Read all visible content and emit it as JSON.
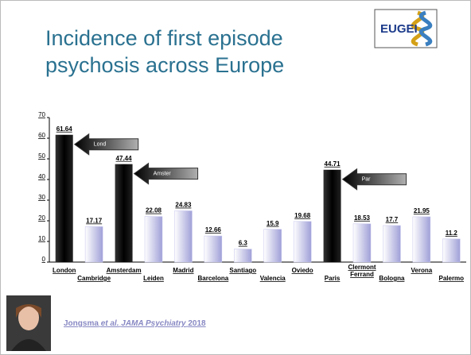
{
  "header": {
    "title_line1": "Incidence of first episode",
    "title_line2": "psychosis across Europe",
    "logo": "EUGEI"
  },
  "chart_data": {
    "type": "bar",
    "categories": [
      "London",
      "Cambridge",
      "Amsterdam",
      "Leiden",
      "Madrid",
      "Barcelona",
      "Santiago",
      "Valencia",
      "Oviedo",
      "Paris",
      "Clermont Ferrand",
      "Bologna",
      "Verona",
      "Palermo"
    ],
    "values": [
      61.64,
      17.17,
      47.44,
      22.08,
      24.83,
      12.66,
      6.3,
      15.9,
      19.68,
      44.71,
      18.53,
      17.7,
      21.95,
      11.2
    ],
    "colors": [
      "#000000",
      "#c4c4ee",
      "#000000",
      "#c4c4ee",
      "#c4c4ee",
      "#c4c4ee",
      "#c4c4ee",
      "#c4c4ee",
      "#c4c4ee",
      "#000000",
      "#c4c4ee",
      "#c4c4ee",
      "#c4c4ee",
      "#c4c4ee"
    ],
    "ylim": [
      0,
      70
    ],
    "yticks": [
      0,
      10,
      20,
      30,
      40,
      50,
      60,
      70
    ],
    "annotations": [
      {
        "text": "Lond",
        "category": 0
      },
      {
        "text": "Amster",
        "category": 2
      },
      {
        "text": "Par",
        "category": 9
      }
    ]
  },
  "citation": {
    "author": "Jongsma",
    "etal": "et al.",
    "journal": "JAMA Psychiatry",
    "year": "2018"
  }
}
